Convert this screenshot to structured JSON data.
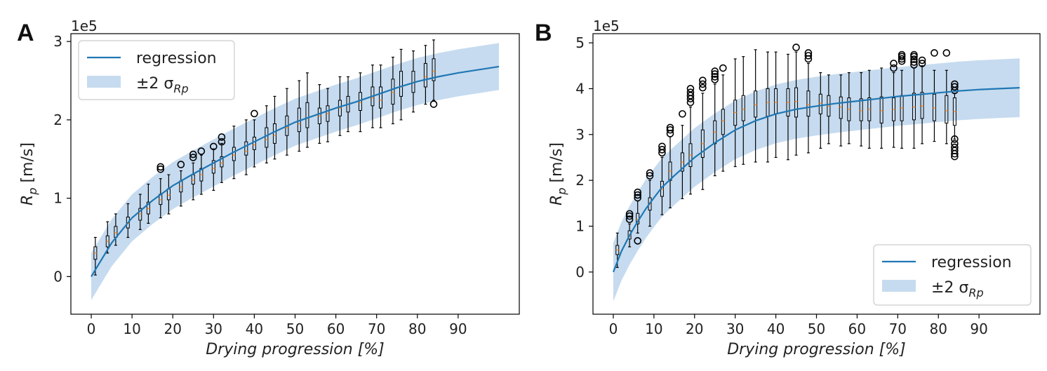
{
  "colors": {
    "regression": "#1f77b4",
    "band": "#c6dbef",
    "median": "#ff7f0e",
    "box": "#000000"
  },
  "chart_data": [
    {
      "type": "line",
      "panel_label": "A",
      "offset_text": "1e5",
      "xlabel": "Drying progression [%]",
      "ylabel": "R_p [m/s]",
      "ylabel_main": "R",
      "ylabel_sub": "p",
      "ylabel_rest": " [m/s]",
      "xlim": [
        -5,
        105
      ],
      "ylim": [
        -0.48,
        3.1
      ],
      "xticks": [
        0,
        10,
        20,
        30,
        40,
        50,
        60,
        70,
        80,
        90
      ],
      "yticks": [
        0,
        1,
        2,
        3
      ],
      "grid": false,
      "legend_position": "top-left",
      "legend": {
        "line_label": "regression",
        "band_label": "±2 σ",
        "band_sub": "Rp"
      },
      "regression": {
        "x": [
          0,
          5,
          10,
          15,
          20,
          25,
          30,
          35,
          40,
          45,
          50,
          55,
          60,
          65,
          70,
          75,
          80,
          85,
          90,
          95,
          100
        ],
        "y": [
          0.0,
          0.43,
          0.75,
          0.97,
          1.16,
          1.31,
          1.45,
          1.59,
          1.72,
          1.85,
          1.97,
          2.06,
          2.15,
          2.23,
          2.32,
          2.41,
          2.49,
          2.55,
          2.6,
          2.64,
          2.68
        ],
        "band_halfwidth": 0.3
      },
      "boxes": [
        {
          "x": 1,
          "q1": 0.22,
          "med": 0.3,
          "q3": 0.38,
          "lo": 0.02,
          "hi": 0.5
        },
        {
          "x": 4,
          "q1": 0.38,
          "med": 0.45,
          "q3": 0.52,
          "lo": 0.3,
          "hi": 0.7
        },
        {
          "x": 6,
          "q1": 0.5,
          "med": 0.56,
          "q3": 0.64,
          "lo": 0.4,
          "hi": 0.8
        },
        {
          "x": 9,
          "q1": 0.62,
          "med": 0.68,
          "q3": 0.76,
          "lo": 0.5,
          "hi": 0.93
        },
        {
          "x": 12,
          "q1": 0.72,
          "med": 0.8,
          "q3": 0.87,
          "lo": 0.6,
          "hi": 1.05
        },
        {
          "x": 14,
          "q1": 0.8,
          "med": 0.87,
          "q3": 0.95,
          "lo": 0.68,
          "hi": 1.18
        },
        {
          "x": 17,
          "q1": 0.92,
          "med": 0.98,
          "q3": 1.05,
          "lo": 0.75,
          "hi": 1.25,
          "fliers": [
            1.37,
            1.4
          ]
        },
        {
          "x": 19,
          "q1": 0.98,
          "med": 1.04,
          "q3": 1.12,
          "lo": 0.8,
          "hi": 1.3
        },
        {
          "x": 22,
          "q1": 1.08,
          "med": 1.14,
          "q3": 1.22,
          "lo": 0.9,
          "hi": 1.35,
          "fliers": [
            1.43
          ]
        },
        {
          "x": 25,
          "q1": 1.18,
          "med": 1.23,
          "q3": 1.3,
          "lo": 0.98,
          "hi": 1.45,
          "fliers": [
            1.52,
            1.56
          ]
        },
        {
          "x": 27,
          "q1": 1.22,
          "med": 1.3,
          "q3": 1.38,
          "lo": 1.05,
          "hi": 1.55,
          "fliers": [
            1.6
          ]
        },
        {
          "x": 30,
          "q1": 1.32,
          "med": 1.38,
          "q3": 1.48,
          "lo": 1.1,
          "hi": 1.63,
          "fliers": [
            1.66
          ]
        },
        {
          "x": 32,
          "q1": 1.4,
          "med": 1.45,
          "q3": 1.53,
          "lo": 1.2,
          "hi": 1.7,
          "fliers": [
            1.72,
            1.78
          ]
        },
        {
          "x": 35,
          "q1": 1.48,
          "med": 1.55,
          "q3": 1.65,
          "lo": 1.25,
          "hi": 1.92
        },
        {
          "x": 38,
          "q1": 1.55,
          "med": 1.6,
          "q3": 1.72,
          "lo": 1.3,
          "hi": 2.0
        },
        {
          "x": 40,
          "q1": 1.62,
          "med": 1.68,
          "q3": 1.78,
          "lo": 1.4,
          "hi": 2.0,
          "fliers": [
            2.08
          ]
        },
        {
          "x": 43,
          "q1": 1.65,
          "med": 1.75,
          "q3": 1.9,
          "lo": 1.45,
          "hi": 2.18
        },
        {
          "x": 45,
          "q1": 1.7,
          "med": 1.8,
          "q3": 1.95,
          "lo": 1.5,
          "hi": 2.3
        },
        {
          "x": 48,
          "q1": 1.8,
          "med": 1.9,
          "q3": 2.05,
          "lo": 1.55,
          "hi": 2.4
        },
        {
          "x": 51,
          "q1": 1.85,
          "med": 1.95,
          "q3": 2.15,
          "lo": 1.6,
          "hi": 2.5
        },
        {
          "x": 53,
          "q1": 1.9,
          "med": 2.02,
          "q3": 2.22,
          "lo": 1.65,
          "hi": 2.6
        },
        {
          "x": 56,
          "q1": 1.95,
          "med": 2.05,
          "q3": 2.15,
          "lo": 1.7,
          "hi": 2.45
        },
        {
          "x": 58,
          "q1": 1.98,
          "med": 2.08,
          "q3": 2.18,
          "lo": 1.72,
          "hi": 2.4
        },
        {
          "x": 61,
          "q1": 2.05,
          "med": 2.15,
          "q3": 2.25,
          "lo": 1.8,
          "hi": 2.55
        },
        {
          "x": 63,
          "q1": 2.1,
          "med": 2.2,
          "q3": 2.3,
          "lo": 1.85,
          "hi": 2.55
        },
        {
          "x": 66,
          "q1": 2.12,
          "med": 2.22,
          "q3": 2.35,
          "lo": 1.85,
          "hi": 2.6
        },
        {
          "x": 69,
          "q1": 2.18,
          "med": 2.28,
          "q3": 2.42,
          "lo": 1.9,
          "hi": 2.7
        },
        {
          "x": 71,
          "q1": 2.15,
          "med": 2.25,
          "q3": 2.42,
          "lo": 1.9,
          "hi": 2.7
        },
        {
          "x": 74,
          "q1": 2.2,
          "med": 2.35,
          "q3": 2.52,
          "lo": 1.95,
          "hi": 2.8
        },
        {
          "x": 76,
          "q1": 2.3,
          "med": 2.42,
          "q3": 2.62,
          "lo": 2.0,
          "hi": 2.9
        },
        {
          "x": 79,
          "q1": 2.35,
          "med": 2.48,
          "q3": 2.62,
          "lo": 2.1,
          "hi": 2.88
        },
        {
          "x": 82,
          "q1": 2.42,
          "med": 2.55,
          "q3": 2.72,
          "lo": 2.2,
          "hi": 2.95
        },
        {
          "x": 84,
          "q1": 2.5,
          "med": 2.62,
          "q3": 2.78,
          "lo": 2.25,
          "hi": 3.02,
          "fliers": [
            2.2
          ]
        }
      ]
    },
    {
      "type": "line",
      "panel_label": "B",
      "offset_text": "1e5",
      "xlabel": "Drying progression [%]",
      "ylabel": "R_p [m/s]",
      "ylabel_main": "R",
      "ylabel_sub": "p",
      "ylabel_rest": " [m/s]",
      "xlim": [
        -5,
        105
      ],
      "ylim": [
        -0.92,
        5.2
      ],
      "xticks": [
        0,
        10,
        20,
        30,
        40,
        50,
        60,
        70,
        80,
        90
      ],
      "yticks": [
        0,
        1,
        2,
        3,
        4,
        5
      ],
      "grid": false,
      "legend_position": "bottom-right",
      "legend": {
        "line_label": "regression",
        "band_label": "±2 σ",
        "band_sub": "Rp"
      },
      "regression": {
        "x": [
          0,
          2,
          4,
          6,
          8,
          10,
          12,
          15,
          20,
          25,
          30,
          35,
          40,
          45,
          50,
          55,
          60,
          65,
          70,
          75,
          80,
          85,
          90,
          95,
          100
        ],
        "y": [
          0.0,
          0.45,
          0.8,
          1.1,
          1.38,
          1.62,
          1.85,
          2.1,
          2.5,
          2.82,
          3.1,
          3.3,
          3.45,
          3.55,
          3.62,
          3.68,
          3.73,
          3.78,
          3.83,
          3.87,
          3.91,
          3.95,
          3.98,
          4.0,
          4.02
        ],
        "band_halfwidth": 0.64
      },
      "boxes": [
        {
          "x": 1,
          "q1": 0.38,
          "med": 0.48,
          "q3": 0.58,
          "lo": 0.1,
          "hi": 0.85
        },
        {
          "x": 4,
          "q1": 0.72,
          "med": 0.8,
          "q3": 0.9,
          "lo": 0.55,
          "hi": 1.05,
          "fliers": [
            1.15,
            1.22,
            1.27
          ]
        },
        {
          "x": 6,
          "q1": 1.05,
          "med": 1.15,
          "q3": 1.28,
          "lo": 0.85,
          "hi": 1.55,
          "fliers": [
            1.62,
            1.68,
            1.74,
            0.68
          ]
        },
        {
          "x": 9,
          "q1": 1.35,
          "med": 1.48,
          "q3": 1.62,
          "lo": 1.0,
          "hi": 2.0,
          "fliers": [
            2.1,
            2.16
          ]
        },
        {
          "x": 12,
          "q1": 1.65,
          "med": 1.8,
          "q3": 1.98,
          "lo": 1.25,
          "hi": 2.5,
          "fliers": [
            2.6,
            2.67,
            2.74
          ]
        },
        {
          "x": 14,
          "q1": 2.0,
          "med": 2.2,
          "q3": 2.4,
          "lo": 1.4,
          "hi": 2.95,
          "fliers": [
            3.02,
            3.1,
            3.15
          ]
        },
        {
          "x": 17,
          "q1": 2.2,
          "med": 2.4,
          "q3": 2.6,
          "lo": 1.6,
          "hi": 3.2,
          "fliers": [
            3.45
          ]
        },
        {
          "x": 19,
          "q1": 2.3,
          "med": 2.55,
          "q3": 2.8,
          "lo": 1.7,
          "hi": 3.6,
          "fliers": [
            3.7,
            3.78,
            3.85,
            3.92,
            4.0
          ]
        },
        {
          "x": 22,
          "q1": 2.5,
          "med": 2.8,
          "q3": 3.1,
          "lo": 1.8,
          "hi": 3.9,
          "fliers": [
            4.02,
            4.1,
            4.18
          ]
        },
        {
          "x": 25,
          "q1": 2.8,
          "med": 3.05,
          "q3": 3.3,
          "lo": 2.1,
          "hi": 4.1,
          "fliers": [
            4.2,
            4.26,
            4.32,
            4.38
          ]
        },
        {
          "x": 27,
          "q1": 3.0,
          "med": 3.3,
          "q3": 3.55,
          "lo": 2.2,
          "hi": 4.3,
          "fliers": [
            4.45
          ]
        },
        {
          "x": 30,
          "q1": 3.2,
          "med": 3.48,
          "q3": 3.75,
          "lo": 2.3,
          "hi": 4.65
        },
        {
          "x": 32,
          "q1": 3.3,
          "med": 3.55,
          "q3": 3.85,
          "lo": 2.35,
          "hi": 4.7
        },
        {
          "x": 35,
          "q1": 3.38,
          "med": 3.65,
          "q3": 3.95,
          "lo": 2.4,
          "hi": 4.85
        },
        {
          "x": 38,
          "q1": 3.4,
          "med": 3.7,
          "q3": 4.0,
          "lo": 2.4,
          "hi": 4.8
        },
        {
          "x": 40,
          "q1": 3.45,
          "med": 3.7,
          "q3": 4.0,
          "lo": 2.5,
          "hi": 4.8
        },
        {
          "x": 43,
          "q1": 3.4,
          "med": 3.7,
          "q3": 4.0,
          "lo": 2.45,
          "hi": 4.75
        },
        {
          "x": 45,
          "q1": 3.38,
          "med": 3.72,
          "q3": 4.02,
          "lo": 2.55,
          "hi": 4.8,
          "fliers": [
            4.9
          ]
        },
        {
          "x": 48,
          "q1": 3.4,
          "med": 3.65,
          "q3": 3.95,
          "lo": 2.6,
          "hi": 4.55,
          "fliers": [
            4.65,
            4.72,
            4.78
          ]
        },
        {
          "x": 51,
          "q1": 3.45,
          "med": 3.68,
          "q3": 3.88,
          "lo": 2.7,
          "hi": 4.35
        },
        {
          "x": 53,
          "q1": 3.4,
          "med": 3.62,
          "q3": 3.85,
          "lo": 2.8,
          "hi": 4.3
        },
        {
          "x": 56,
          "q1": 3.35,
          "med": 3.6,
          "q3": 3.82,
          "lo": 2.75,
          "hi": 4.3
        },
        {
          "x": 58,
          "q1": 3.3,
          "med": 3.55,
          "q3": 3.8,
          "lo": 2.8,
          "hi": 4.35
        },
        {
          "x": 61,
          "q1": 3.3,
          "med": 3.52,
          "q3": 3.78,
          "lo": 2.75,
          "hi": 4.35
        },
        {
          "x": 63,
          "q1": 3.3,
          "med": 3.55,
          "q3": 3.8,
          "lo": 2.7,
          "hi": 4.4
        },
        {
          "x": 66,
          "q1": 3.25,
          "med": 3.52,
          "q3": 3.82,
          "lo": 2.7,
          "hi": 4.45
        },
        {
          "x": 69,
          "q1": 3.3,
          "med": 3.55,
          "q3": 3.8,
          "lo": 2.72,
          "hi": 4.35,
          "fliers": [
            4.45,
            4.55
          ]
        },
        {
          "x": 71,
          "q1": 3.3,
          "med": 3.58,
          "q3": 3.85,
          "lo": 2.7,
          "hi": 4.4,
          "fliers": [
            4.6,
            4.65,
            4.7,
            4.74
          ]
        },
        {
          "x": 74,
          "q1": 3.32,
          "med": 3.6,
          "q3": 3.9,
          "lo": 2.7,
          "hi": 4.45,
          "fliers": [
            4.52,
            4.58,
            4.64,
            4.7,
            4.74
          ]
        },
        {
          "x": 76,
          "q1": 3.35,
          "med": 3.62,
          "q3": 3.92,
          "lo": 2.8,
          "hi": 4.5,
          "fliers": [
            4.55,
            4.62
          ]
        },
        {
          "x": 79,
          "q1": 3.3,
          "med": 3.58,
          "q3": 3.88,
          "lo": 2.85,
          "hi": 4.4,
          "fliers": [
            4.78
          ]
        },
        {
          "x": 82,
          "q1": 3.25,
          "med": 3.52,
          "q3": 3.85,
          "lo": 2.8,
          "hi": 4.4,
          "fliers": [
            4.78
          ]
        },
        {
          "x": 84,
          "q1": 3.2,
          "med": 3.5,
          "q3": 3.8,
          "lo": 2.9,
          "hi": 3.9,
          "fliers": [
            3.96,
            4.04,
            4.1,
            2.9,
            2.8,
            2.72,
            2.65,
            2.58,
            2.52
          ]
        }
      ]
    }
  ]
}
